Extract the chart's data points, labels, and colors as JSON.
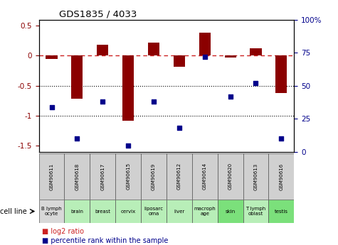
{
  "title": "GDS1835 / 4033",
  "samples": [
    "GSM90611",
    "GSM90618",
    "GSM90617",
    "GSM90615",
    "GSM90619",
    "GSM90612",
    "GSM90614",
    "GSM90620",
    "GSM90613",
    "GSM90616"
  ],
  "cell_lines": [
    "B lymph\nocyte",
    "brain",
    "breast",
    "cervix",
    "liposarc\noma",
    "liver",
    "macroph\nage",
    "skin",
    "T lymph\noblast",
    "testis"
  ],
  "cell_colors": [
    "#d8d8d8",
    "#b8eeb8",
    "#b8eeb8",
    "#b8eeb8",
    "#b8eeb8",
    "#b8eeb8",
    "#b8eeb8",
    "#7be07b",
    "#b8eeb8",
    "#7be07b"
  ],
  "log2_ratio": [
    -0.05,
    -0.72,
    0.18,
    -1.08,
    0.22,
    -0.18,
    0.38,
    -0.03,
    0.12,
    -0.62
  ],
  "percentile_rank": [
    34,
    10,
    38,
    5,
    38,
    18,
    72,
    42,
    52,
    10
  ],
  "ylim_left": [
    -1.6,
    0.6
  ],
  "ylim_right": [
    0,
    100
  ],
  "bar_color": "#8b0000",
  "dot_color": "#00008b",
  "dashed_line_color": "#cc2222",
  "dotted_line_color": "#000000",
  "legend_bar_color": "#cc2222",
  "legend_dot_color": "#00008b",
  "yticks_left": [
    -1.5,
    -1.0,
    -0.5,
    0.0,
    0.5
  ],
  "ytick_labels_left": [
    "-1.5",
    "-1",
    "-0.5",
    "0",
    "0.5"
  ],
  "yticks_right": [
    0,
    25,
    50,
    75,
    100
  ],
  "ytick_labels_right": [
    "0",
    "25",
    "50",
    "75",
    "100%"
  ],
  "gsm_bg_color": "#d0d0d0",
  "cell_line_label": "cell line"
}
